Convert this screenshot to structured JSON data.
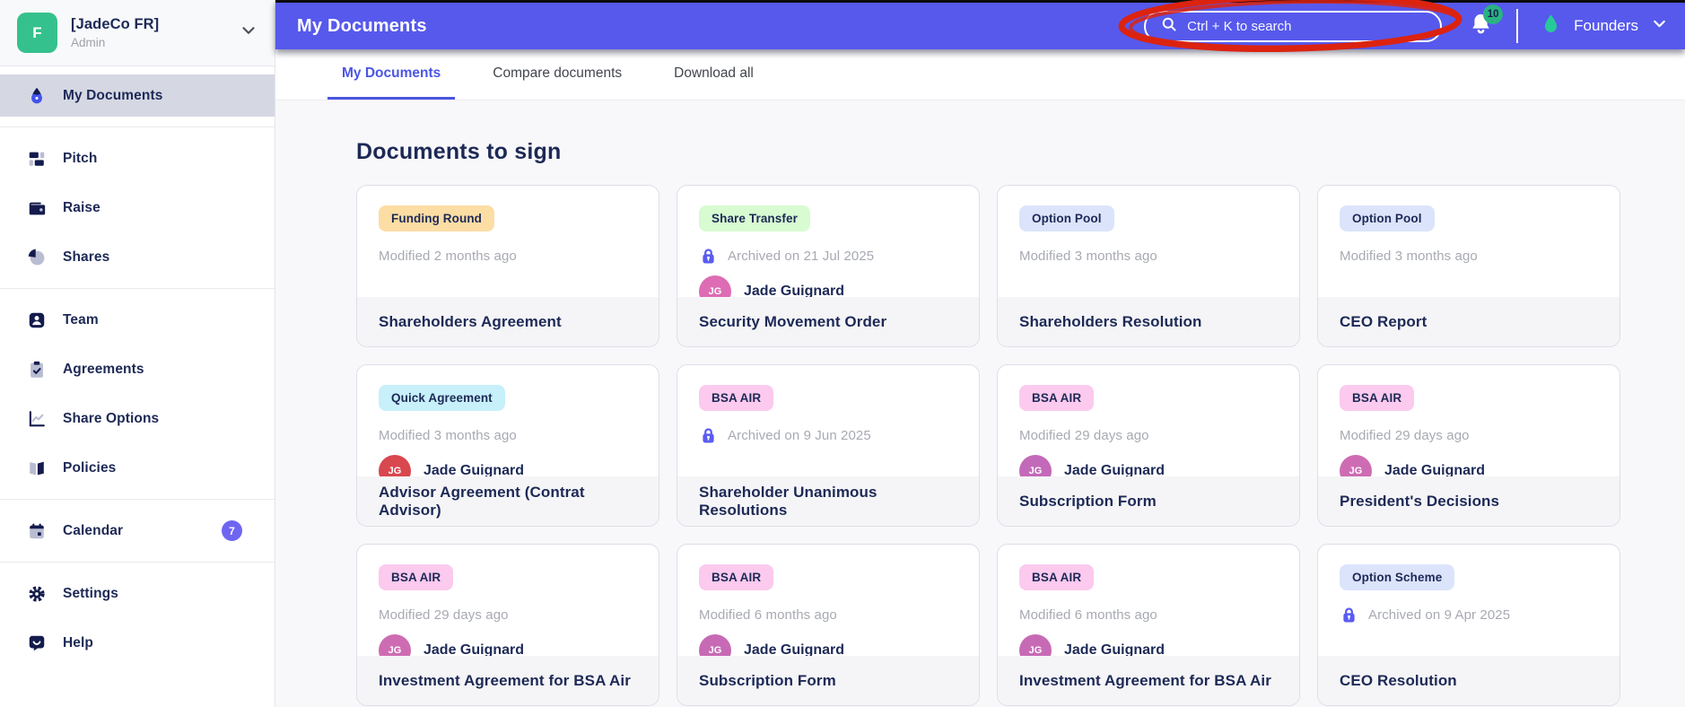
{
  "colors": {
    "header_bg": "#5659ec",
    "accent": "#4b55e3",
    "navy_text": "#1d2956",
    "annotation_red": "#dc2310",
    "notification_badge_green": "#2ab283",
    "workspace_avatar_green": "#35c18d"
  },
  "workspace": {
    "initial": "F",
    "name": "[JadeCo FR]",
    "role": "Admin"
  },
  "sidebar": {
    "items": [
      {
        "id": "my-documents",
        "label": "My Documents",
        "icon": "signature-icon",
        "active": true
      },
      {
        "id": "pitch",
        "label": "Pitch",
        "icon": "pitch-icon",
        "divider_before": true
      },
      {
        "id": "raise",
        "label": "Raise",
        "icon": "raise-icon"
      },
      {
        "id": "shares",
        "label": "Shares",
        "icon": "shares-icon"
      },
      {
        "id": "team",
        "label": "Team",
        "icon": "team-icon",
        "divider_before": true
      },
      {
        "id": "agreements",
        "label": "Agreements",
        "icon": "agreements-icon"
      },
      {
        "id": "share-options",
        "label": "Share Options",
        "icon": "share-options-icon"
      },
      {
        "id": "policies",
        "label": "Policies",
        "icon": "policies-icon"
      },
      {
        "id": "calendar",
        "label": "Calendar",
        "icon": "calendar-icon",
        "badge": "7",
        "divider_before": true
      },
      {
        "id": "settings",
        "label": "Settings",
        "icon": "settings-icon",
        "divider_before": true
      },
      {
        "id": "help",
        "label": "Help",
        "icon": "help-icon"
      }
    ]
  },
  "header": {
    "title": "My Documents",
    "search_placeholder": "Ctrl + K to search",
    "notification_count": "10",
    "org_label": "Founders"
  },
  "tabs": [
    {
      "id": "my-documents",
      "label": "My Documents",
      "active": true
    },
    {
      "id": "compare-documents",
      "label": "Compare documents"
    },
    {
      "id": "download-all",
      "label": "Download all"
    }
  ],
  "main": {
    "section_title": "Documents to sign",
    "cards": [
      {
        "tag": "Funding Round",
        "tag_color": "#fcdda4",
        "meta": "Modified 2 months ago",
        "archived": false,
        "title": "Shareholders Agreement"
      },
      {
        "tag": "Share Transfer",
        "tag_color": "#d8fbd1",
        "meta": "Archived on 21 Jul 2025",
        "archived": true,
        "person": "Jade Guignard",
        "initials": "JG",
        "avatar_color": "#dd6cb4",
        "title": "Security Movement Order"
      },
      {
        "tag": "Option Pool",
        "tag_color": "#dce4fb",
        "meta": "Modified 3 months ago",
        "archived": false,
        "title": "Shareholders Resolution"
      },
      {
        "tag": "Option Pool",
        "tag_color": "#dce4fb",
        "meta": "Modified 3 months ago",
        "archived": false,
        "title": "CEO Report"
      },
      {
        "tag": "Quick Agreement",
        "tag_color": "#c7f0fa",
        "meta": "Modified 3 months ago",
        "archived": false,
        "person": "Jade Guignard",
        "initials": "JG",
        "avatar_color": "#d9474f",
        "title": "Advisor Agreement (Contrat Advisor)"
      },
      {
        "tag": "BSA AIR",
        "tag_color": "#fbcaee",
        "meta": "Archived on 9 Jun 2025",
        "archived": true,
        "title": "Shareholder Unanimous Resolutions"
      },
      {
        "tag": "BSA AIR",
        "tag_color": "#fbcaee",
        "meta": "Modified 29 days ago",
        "archived": false,
        "person": "Jade Guignard",
        "initials": "JG",
        "avatar_color": "#c369b9",
        "title": "Subscription Form"
      },
      {
        "tag": "BSA AIR",
        "tag_color": "#fbcaee",
        "meta": "Modified 29 days ago",
        "archived": false,
        "person": "Jade Guignard",
        "initials": "JG",
        "avatar_color": "#ce6cb3",
        "title": "President's Decisions"
      },
      {
        "tag": "BSA AIR",
        "tag_color": "#fbcaee",
        "meta": "Modified 29 days ago",
        "archived": false,
        "person": "Jade Guignard",
        "initials": "JG",
        "avatar_color": "#ce6cb3",
        "title": "Investment Agreement for BSA Air"
      },
      {
        "tag": "BSA AIR",
        "tag_color": "#fbcaee",
        "meta": "Modified 6 months ago",
        "archived": false,
        "person": "Jade Guignard",
        "initials": "JG",
        "avatar_color": "#c76ab5",
        "title": "Subscription Form"
      },
      {
        "tag": "BSA AIR",
        "tag_color": "#fbcaee",
        "meta": "Modified 6 months ago",
        "archived": false,
        "person": "Jade Guignard",
        "initials": "JG",
        "avatar_color": "#c76ab5",
        "title": "Investment Agreement for BSA Air"
      },
      {
        "tag": "Option Scheme",
        "tag_color": "#dce4fb",
        "meta": "Archived on 9 Apr 2025",
        "archived": true,
        "title": "CEO Resolution"
      }
    ]
  }
}
